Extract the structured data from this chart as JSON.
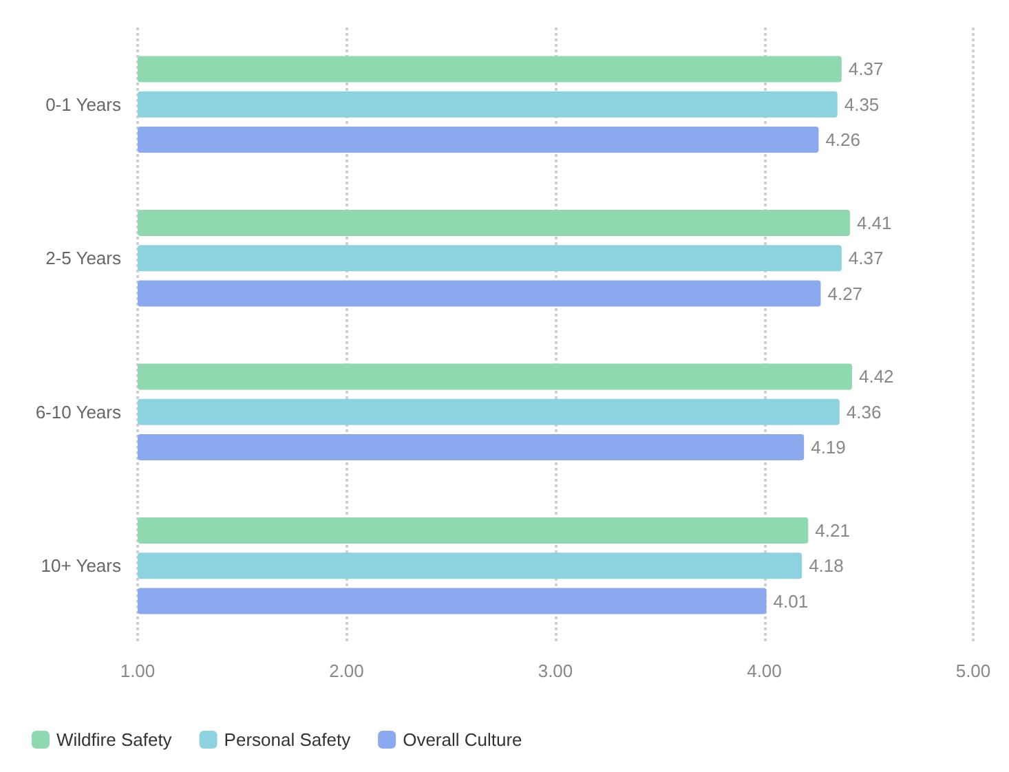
{
  "chart_data": {
    "type": "bar",
    "orientation": "horizontal",
    "categories": [
      "0-1 Years",
      "2-5 Years",
      "6-10 Years",
      "10+ Years"
    ],
    "series": [
      {
        "name": "Wildfire Safety",
        "color": "#8fd9b0",
        "values": [
          4.37,
          4.41,
          4.42,
          4.21
        ]
      },
      {
        "name": "Personal Safety",
        "color": "#8dd3df",
        "values": [
          4.35,
          4.37,
          4.36,
          4.18
        ]
      },
      {
        "name": "Overall Culture",
        "color": "#8aa9ef",
        "values": [
          4.26,
          4.27,
          4.19,
          4.01
        ]
      }
    ],
    "xlim": [
      1,
      5
    ],
    "xticks": [
      {
        "value": 1,
        "label": "1.00"
      },
      {
        "value": 2,
        "label": "2.00"
      },
      {
        "value": 3,
        "label": "3.00"
      },
      {
        "value": 4,
        "label": "4.00"
      },
      {
        "value": 5,
        "label": "5.00"
      }
    ],
    "grid": "x",
    "legend": "bottom left",
    "data_labels": true
  }
}
